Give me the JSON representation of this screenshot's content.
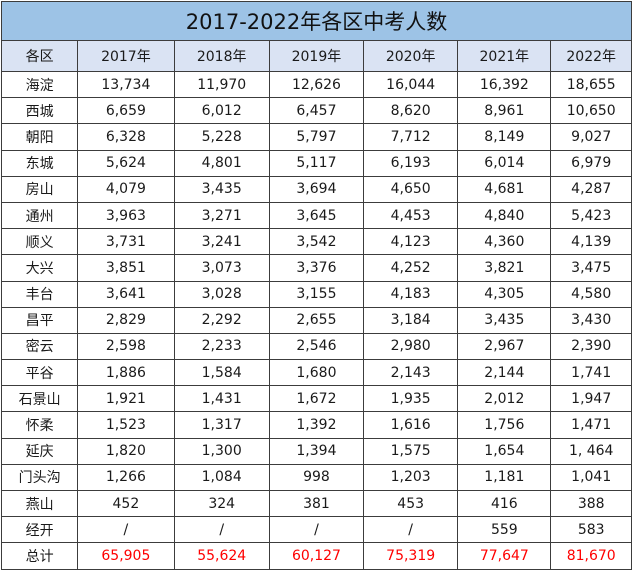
{
  "title": "2017-2022年各区中考人数",
  "headers": [
    "各区",
    "2017年",
    "2018年",
    "2019年",
    "2020年",
    "2021年",
    "2022年"
  ],
  "rows": [
    [
      "海淀",
      "13,734",
      "11,970",
      "12,626",
      "16,044",
      "16,392",
      "18,655"
    ],
    [
      "西城",
      "6,659",
      "6,012",
      "6,457",
      "8,620",
      "8,961",
      "10,650"
    ],
    [
      "朝阳",
      "6,328",
      "5,228",
      "5,797",
      "7,712",
      "8,149",
      "9,027"
    ],
    [
      "东城",
      "5,624",
      "4,801",
      "5,117",
      "6,193",
      "6,014",
      "6,979"
    ],
    [
      "房山",
      "4,079",
      "3,435",
      "3,694",
      "4,650",
      "4,681",
      "4,287"
    ],
    [
      "通州",
      "3,963",
      "3,271",
      "3,645",
      "4,453",
      "4,840",
      "5,423"
    ],
    [
      "顺义",
      "3,731",
      "3,241",
      "3,542",
      "4,123",
      "4,360",
      "4,139"
    ],
    [
      "大兴",
      "3,851",
      "3,073",
      "3,376",
      "4,252",
      "3,821",
      "3,475"
    ],
    [
      "丰台",
      "3,641",
      "3,028",
      "3,155",
      "4,183",
      "4,305",
      "4,580"
    ],
    [
      "昌平",
      "2,829",
      "2,292",
      "2,655",
      "3,184",
      "3,435",
      "3,430"
    ],
    [
      "密云",
      "2,598",
      "2,233",
      "2,546",
      "2,980",
      "2,967",
      "2,390"
    ],
    [
      "平谷",
      "1,886",
      "1,584",
      "1,680",
      "2,143",
      "2,144",
      "1,741"
    ],
    [
      "石景山",
      "1,921",
      "1,431",
      "1,672",
      "1,935",
      "2,012",
      "1,947"
    ],
    [
      "怀柔",
      "1,523",
      "1,317",
      "1,392",
      "1,616",
      "1,756",
      "1,471"
    ],
    [
      "延庆",
      "1,820",
      "1,300",
      "1,394",
      "1,575",
      "1,654",
      "1, 464"
    ],
    [
      "门头沟",
      "1,266",
      "1,084",
      "998",
      "1,203",
      "1,181",
      "1,041"
    ],
    [
      "燕山",
      "452",
      "324",
      "381",
      "453",
      "416",
      "388"
    ],
    [
      "经开",
      "/",
      "/",
      "/",
      "/",
      "559",
      "583"
    ]
  ],
  "total": {
    "label": "总计",
    "values": [
      "65,905",
      "55,624",
      "60,127",
      "75,319",
      "77,647",
      "81,670"
    ],
    "color": "#ff0000"
  },
  "colors": {
    "title_bg": "#9dc3e6",
    "header_bg": "#dae3f3",
    "border": "#3c3c3c"
  }
}
